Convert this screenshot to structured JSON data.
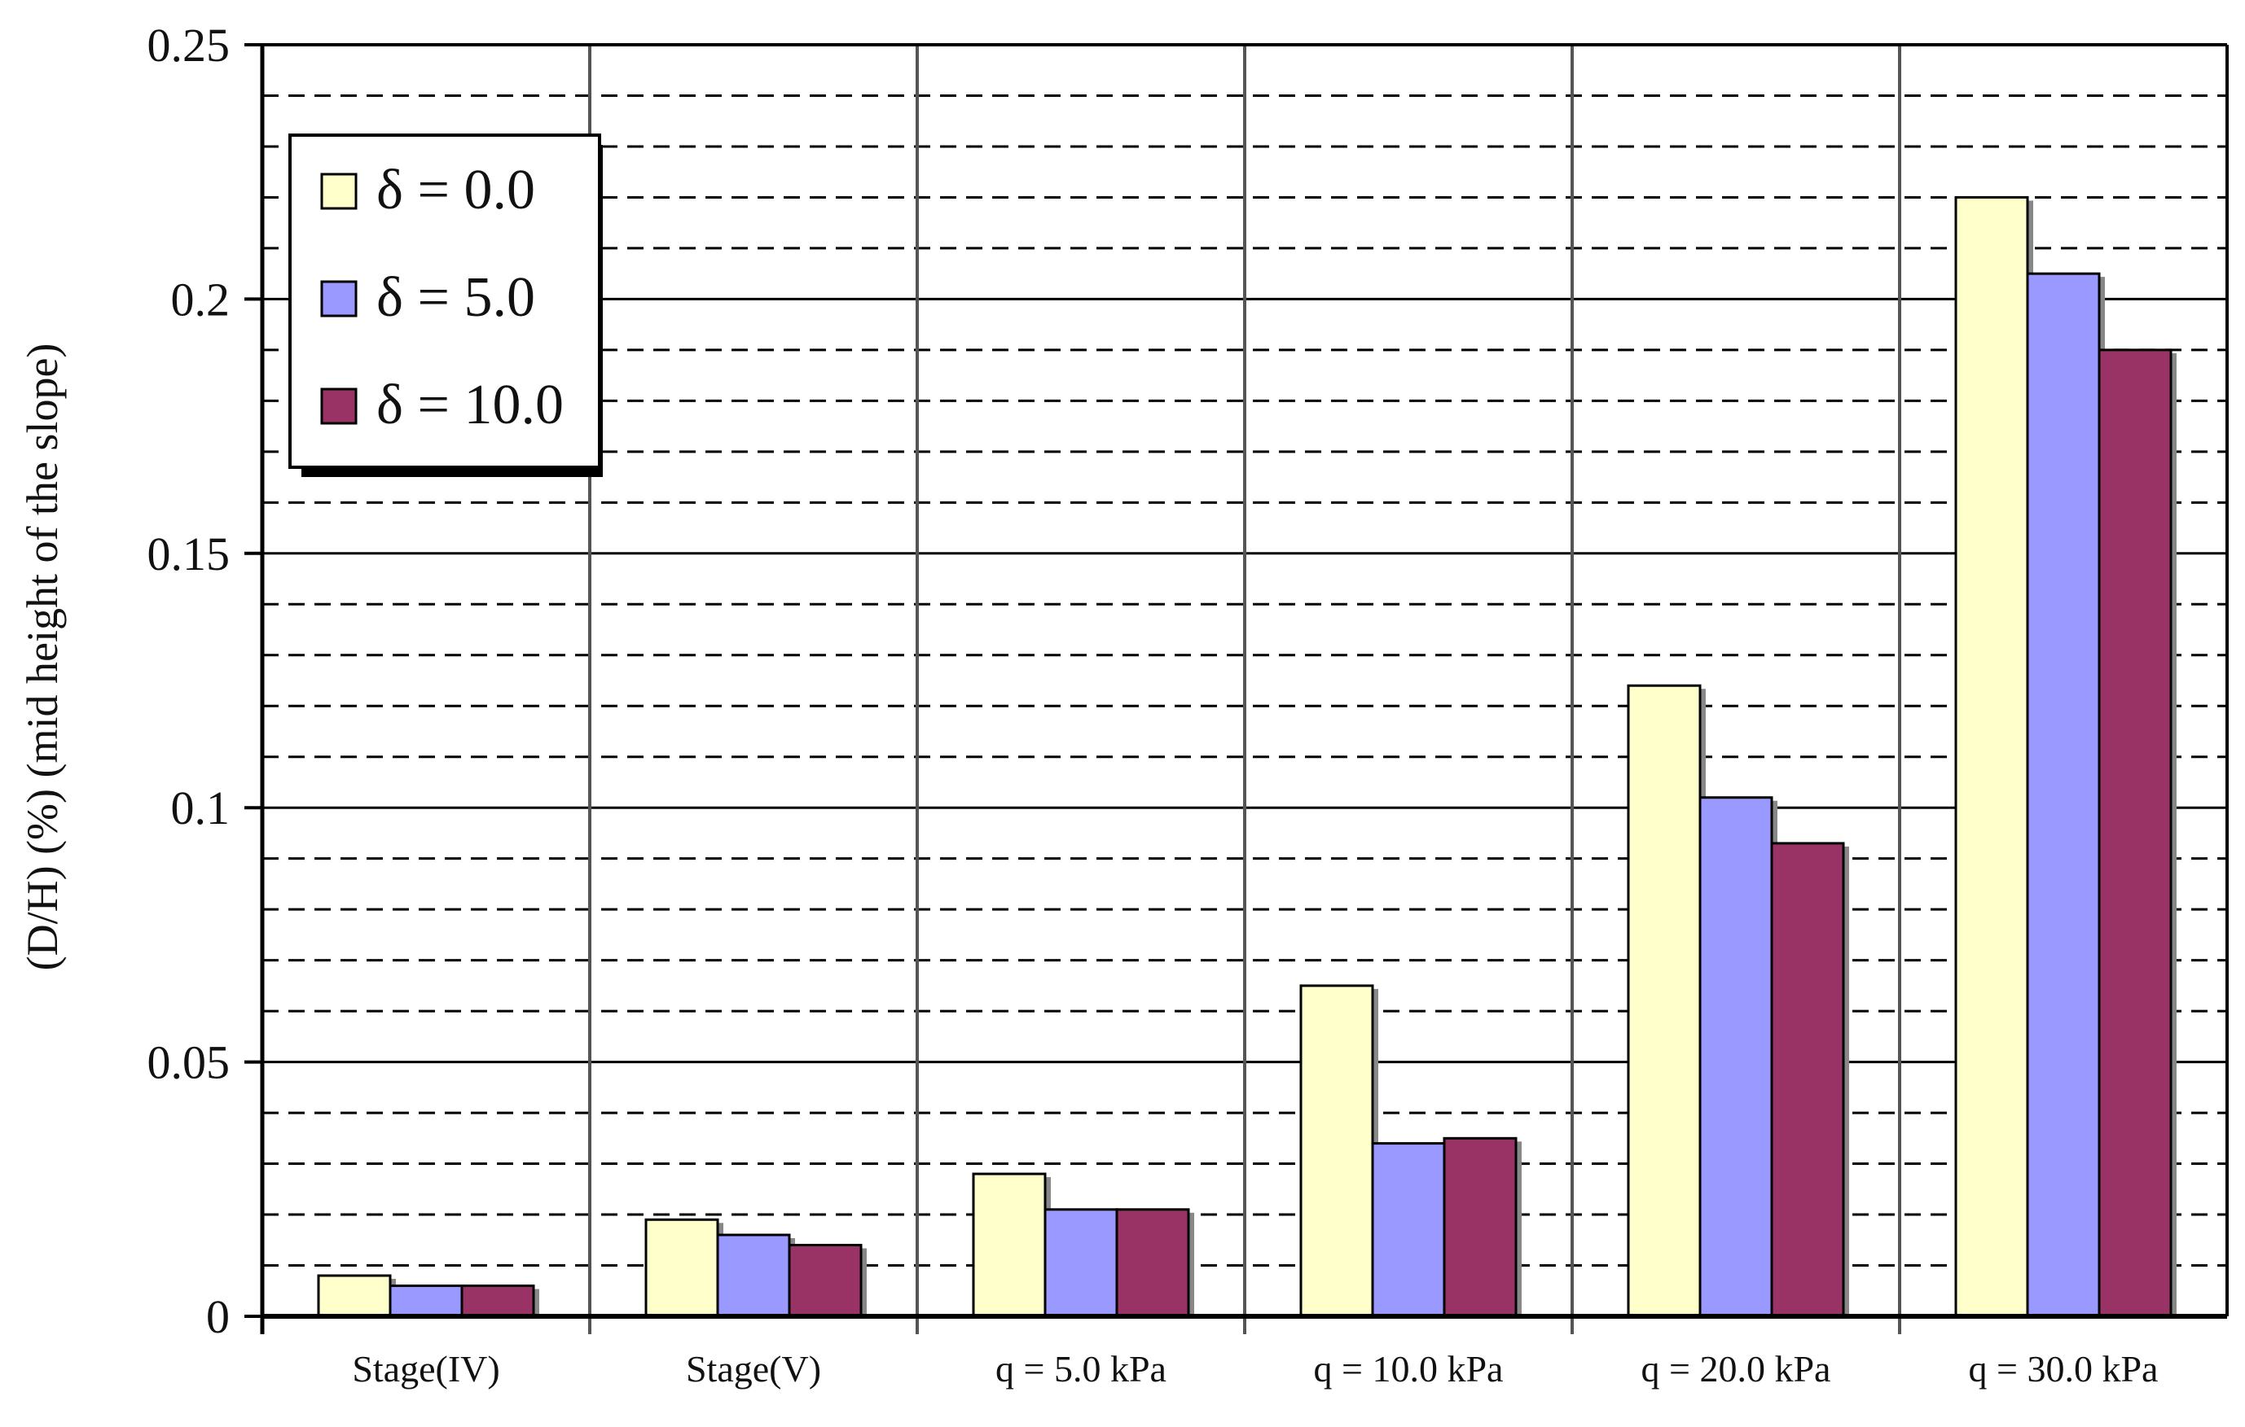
{
  "chart_data": {
    "type": "bar",
    "title": "",
    "xlabel": "",
    "ylabel": "(D/H) (%) (mid height of the slope)",
    "categories": [
      "Stage(IV)",
      "Stage(V)",
      "q = 5.0 kPa",
      "q = 10.0 kPa",
      "q = 20.0 kPa",
      "q = 30.0 kPa"
    ],
    "series": [
      {
        "name": "δ = 0.0",
        "color": "#ffffcc",
        "values": [
          0.008,
          0.019,
          0.028,
          0.065,
          0.124,
          0.22
        ]
      },
      {
        "name": "δ = 5.0",
        "color": "#9999ff",
        "values": [
          0.006,
          0.016,
          0.021,
          0.034,
          0.102,
          0.205
        ]
      },
      {
        "name": "δ = 10.0",
        "color": "#993366",
        "values": [
          0.006,
          0.014,
          0.021,
          0.035,
          0.093,
          0.19
        ]
      }
    ],
    "ylim": [
      0,
      0.25
    ],
    "yticks": [
      0,
      0.05,
      0.1,
      0.15,
      0.2,
      0.25
    ],
    "ytick_labels": [
      "0",
      "0.05",
      "0.1",
      "0.15",
      "0.2",
      "0.25"
    ],
    "minor_gridline_step": 0.01,
    "grid": true,
    "legend_position": "top-left"
  }
}
